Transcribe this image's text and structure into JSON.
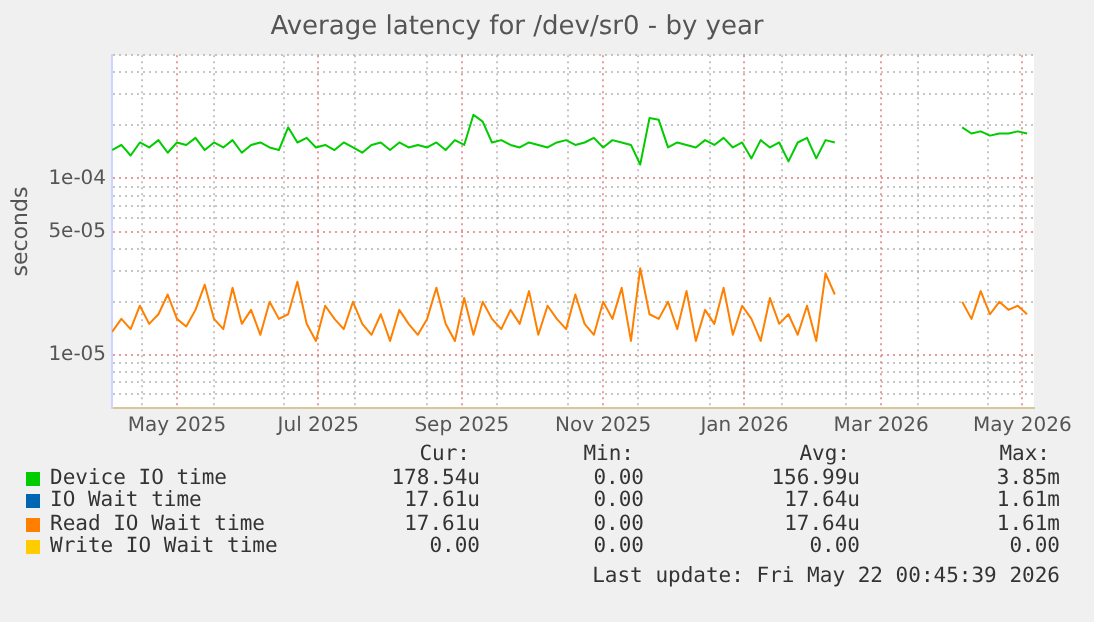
{
  "chart_data": {
    "type": "line",
    "title": "Average latency for /dev/sr0 - by year",
    "ylabel": "seconds",
    "log": "y",
    "grid": true,
    "legend": "bottom",
    "marker": "none",
    "xlim": [
      "2025-04-18",
      "2026-05-21"
    ],
    "xticks": [
      {
        "value": "2025-05-01",
        "label": null
      },
      {
        "value": "2025-05-16",
        "label": "May 2025"
      },
      {
        "value": "2025-06-01",
        "label": null
      },
      {
        "value": "2025-07-01",
        "label": null
      },
      {
        "value": "2025-07-16",
        "label": "Jul 2025"
      },
      {
        "value": "2025-08-01",
        "label": null
      },
      {
        "value": "2025-09-01",
        "label": null
      },
      {
        "value": "2025-09-16",
        "label": "Sep 2025"
      },
      {
        "value": "2025-10-01",
        "label": null
      },
      {
        "value": "2025-11-01",
        "label": null
      },
      {
        "value": "2025-11-16",
        "label": "Nov 2025"
      },
      {
        "value": "2025-12-01",
        "label": null
      },
      {
        "value": "2026-01-01",
        "label": null
      },
      {
        "value": "2026-01-16",
        "label": "Jan 2026"
      },
      {
        "value": "2026-02-01",
        "label": null
      },
      {
        "value": "2026-03-01",
        "label": null
      },
      {
        "value": "2026-03-16",
        "label": "Mar 2026"
      },
      {
        "value": "2026-04-01",
        "label": null
      },
      {
        "value": "2026-05-01",
        "label": null
      },
      {
        "value": "2026-05-16",
        "label": "May 2026"
      }
    ],
    "ylim": [
      5e-06,
      0.0005
    ],
    "yticks": [
      {
        "value": 6e-06,
        "label": null
      },
      {
        "value": 7e-06,
        "label": null
      },
      {
        "value": 8e-06,
        "label": null
      },
      {
        "value": 9e-06,
        "label": null
      },
      {
        "value": 1e-05,
        "label": "1e-05"
      },
      {
        "value": 2e-05,
        "label": null
      },
      {
        "value": 3e-05,
        "label": null
      },
      {
        "value": 4e-05,
        "label": null
      },
      {
        "value": 5e-05,
        "label": "5e-05"
      },
      {
        "value": 6e-05,
        "label": null
      },
      {
        "value": 7e-05,
        "label": null
      },
      {
        "value": 8e-05,
        "label": null
      },
      {
        "value": 9e-05,
        "label": null
      },
      {
        "value": 0.0001,
        "label": "1e-04"
      },
      {
        "value": 0.0002,
        "label": null
      },
      {
        "value": 0.0003,
        "label": null
      },
      {
        "value": 0.0004,
        "label": null
      },
      {
        "value": 0.0005,
        "label": null
      }
    ],
    "x": [
      "2025-04-18",
      "2025-04-22",
      "2025-04-26",
      "2025-04-30",
      "2025-05-04",
      "2025-05-08",
      "2025-05-12",
      "2025-05-16",
      "2025-05-20",
      "2025-05-24",
      "2025-05-28",
      "2025-06-01",
      "2025-06-05",
      "2025-06-09",
      "2025-06-13",
      "2025-06-17",
      "2025-06-21",
      "2025-06-25",
      "2025-06-29",
      "2025-07-03",
      "2025-07-07",
      "2025-07-11",
      "2025-07-15",
      "2025-07-19",
      "2025-07-23",
      "2025-07-27",
      "2025-07-31",
      "2025-08-04",
      "2025-08-08",
      "2025-08-12",
      "2025-08-16",
      "2025-08-20",
      "2025-08-24",
      "2025-08-28",
      "2025-09-01",
      "2025-09-05",
      "2025-09-09",
      "2025-09-13",
      "2025-09-17",
      "2025-09-21",
      "2025-09-25",
      "2025-09-29",
      "2025-10-03",
      "2025-10-07",
      "2025-10-11",
      "2025-10-15",
      "2025-10-19",
      "2025-10-23",
      "2025-10-27",
      "2025-10-31",
      "2025-11-04",
      "2025-11-08",
      "2025-11-12",
      "2025-11-16",
      "2025-11-20",
      "2025-11-24",
      "2025-11-28",
      "2025-12-02",
      "2025-12-06",
      "2025-12-10",
      "2025-12-14",
      "2025-12-18",
      "2025-12-22",
      "2025-12-26",
      "2025-12-30",
      "2026-01-03",
      "2026-01-07",
      "2026-01-11",
      "2026-01-15",
      "2026-01-19",
      "2026-01-23",
      "2026-01-27",
      "2026-01-31",
      "2026-02-04",
      "2026-02-08",
      "2026-02-12",
      "2026-02-16",
      "2026-02-20",
      "2026-02-24",
      "2026-03-20",
      "2026-04-20",
      "2026-04-24",
      "2026-04-28",
      "2026-05-02",
      "2026-05-06",
      "2026-05-10",
      "2026-05-14",
      "2026-05-18"
    ],
    "series": [
      {
        "name": "Device IO time",
        "color": "#00cc00",
        "values": [
          0.000145,
          0.000155,
          0.000135,
          0.00016,
          0.00015,
          0.000165,
          0.00014,
          0.00016,
          0.000155,
          0.00017,
          0.000145,
          0.00016,
          0.00015,
          0.000165,
          0.00014,
          0.000155,
          0.00016,
          0.00015,
          0.000145,
          0.000195,
          0.00016,
          0.00017,
          0.00015,
          0.000155,
          0.000145,
          0.00016,
          0.00015,
          0.00014,
          0.000155,
          0.00016,
          0.000145,
          0.00016,
          0.00015,
          0.000155,
          0.00015,
          0.00016,
          0.000145,
          0.000165,
          0.000155,
          0.00023,
          0.00021,
          0.00016,
          0.000165,
          0.000155,
          0.00015,
          0.00016,
          0.000155,
          0.00015,
          0.00016,
          0.000165,
          0.000155,
          0.00016,
          0.00017,
          0.00015,
          0.000165,
          0.00016,
          0.000155,
          0.00012,
          0.00022,
          0.000215,
          0.00015,
          0.00016,
          0.000155,
          0.00015,
          0.000165,
          0.000155,
          0.00017,
          0.00015,
          0.00016,
          0.00013,
          0.000165,
          0.00015,
          0.00016,
          0.000125,
          0.00016,
          0.00017,
          0.00013,
          0.000165,
          0.00016,
          null,
          0.000195,
          0.00018,
          0.000185,
          0.000175,
          0.00018,
          0.00018,
          0.000185,
          0.00018
        ]
      },
      {
        "name": "IO Wait time",
        "color": "#0066b3",
        "values": [
          null,
          null,
          null,
          null,
          null,
          null,
          null,
          null,
          null,
          null,
          null,
          null,
          null,
          null,
          null,
          null,
          null,
          null,
          null,
          null,
          null,
          null,
          null,
          null,
          null,
          null,
          null,
          null,
          null,
          null,
          null,
          null,
          null,
          null,
          null,
          null,
          null,
          null,
          null,
          null,
          null,
          null,
          null,
          null,
          null,
          null,
          null,
          null,
          null,
          null,
          null,
          null,
          null,
          null,
          null,
          null,
          null,
          null,
          null,
          null,
          null,
          null,
          null,
          null,
          null,
          null,
          null,
          null,
          null,
          null,
          null,
          null,
          null,
          null,
          null,
          null,
          null,
          null,
          null,
          null,
          null,
          null,
          null,
          null,
          null,
          null,
          null,
          null
        ]
      },
      {
        "name": "Read IO Wait time",
        "color": "#ff8000",
        "values": [
          1.35e-05,
          1.6e-05,
          1.4e-05,
          1.9e-05,
          1.5e-05,
          1.7e-05,
          2.2e-05,
          1.6e-05,
          1.45e-05,
          1.8e-05,
          2.5e-05,
          1.6e-05,
          1.4e-05,
          2.4e-05,
          1.5e-05,
          1.8e-05,
          1.3e-05,
          2e-05,
          1.6e-05,
          1.7e-05,
          2.6e-05,
          1.5e-05,
          1.2e-05,
          1.9e-05,
          1.6e-05,
          1.4e-05,
          2e-05,
          1.5e-05,
          1.3e-05,
          1.7e-05,
          1.2e-05,
          1.8e-05,
          1.5e-05,
          1.3e-05,
          1.6e-05,
          2.4e-05,
          1.5e-05,
          1.2e-05,
          2.1e-05,
          1.3e-05,
          2e-05,
          1.6e-05,
          1.4e-05,
          1.8e-05,
          1.5e-05,
          2.3e-05,
          1.3e-05,
          1.9e-05,
          1.6e-05,
          1.4e-05,
          2.2e-05,
          1.5e-05,
          1.3e-05,
          2e-05,
          1.6e-05,
          2.4e-05,
          1.2e-05,
          3.1e-05,
          1.7e-05,
          1.6e-05,
          2e-05,
          1.4e-05,
          2.3e-05,
          1.2e-05,
          1.8e-05,
          1.5e-05,
          2.4e-05,
          1.3e-05,
          1.9e-05,
          1.6e-05,
          1.2e-05,
          2.1e-05,
          1.5e-05,
          1.7e-05,
          1.3e-05,
          1.9e-05,
          1.2e-05,
          2.9e-05,
          2.2e-05,
          null,
          2e-05,
          1.6e-05,
          2.3e-05,
          1.7e-05,
          2e-05,
          1.8e-05,
          1.9e-05,
          1.7e-05
        ]
      },
      {
        "name": "Write IO Wait time",
        "color": "#ffcc00",
        "values": [
          null,
          null,
          null,
          null,
          null,
          null,
          null,
          null,
          null,
          null,
          null,
          null,
          null,
          null,
          null,
          null,
          null,
          null,
          null,
          null,
          null,
          null,
          null,
          null,
          null,
          null,
          null,
          null,
          null,
          null,
          null,
          null,
          null,
          null,
          null,
          null,
          null,
          null,
          null,
          null,
          null,
          null,
          null,
          null,
          null,
          null,
          null,
          null,
          null,
          null,
          null,
          null,
          null,
          null,
          null,
          null,
          null,
          null,
          null,
          null,
          null,
          null,
          null,
          null,
          null,
          null,
          null,
          null,
          null,
          null,
          null,
          null,
          null,
          null,
          null,
          null,
          null,
          null,
          null,
          null,
          null,
          null,
          null,
          null,
          null,
          null,
          null,
          null
        ]
      }
    ],
    "annotations": [
      "Cur:",
      "Min:",
      "Avg:",
      "Max:",
      "178.54u",
      "0.00",
      "156.99u",
      "3.85m",
      "17.61u",
      "0.00",
      "17.64u",
      "1.61m",
      "17.61u",
      "0.00",
      "17.64u",
      "1.61m",
      "0.00",
      "0.00",
      "0.00",
      "0.00",
      "Last update: Fri May 22 00:45:39 2026"
    ]
  }
}
